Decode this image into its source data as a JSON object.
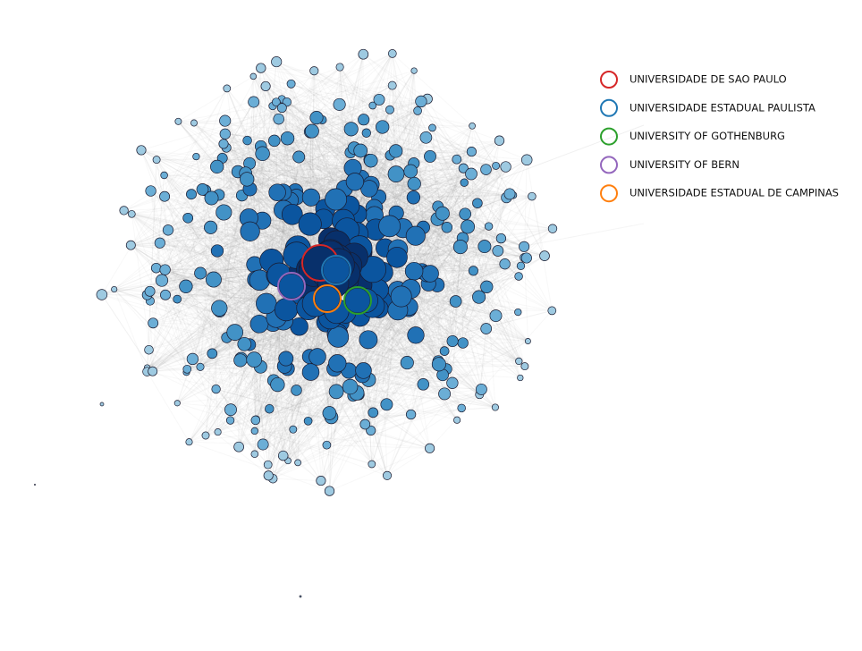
{
  "legend": {
    "items": [
      {
        "label": "UNIVERSIDADE DE SAO PAULO",
        "color": "#d62728"
      },
      {
        "label": "UNIVERSIDADE ESTADUAL PAULISTA",
        "color": "#1f77b4"
      },
      {
        "label": "UNIVERSITY OF GOTHENBURG",
        "color": "#2ca02c"
      },
      {
        "label": "UNIVERSITY OF BERN",
        "color": "#9467bd"
      },
      {
        "label": "UNIVERSIDADE ESTADUAL DE CAMPINAS",
        "color": "#ff7f0e"
      }
    ]
  }
}
